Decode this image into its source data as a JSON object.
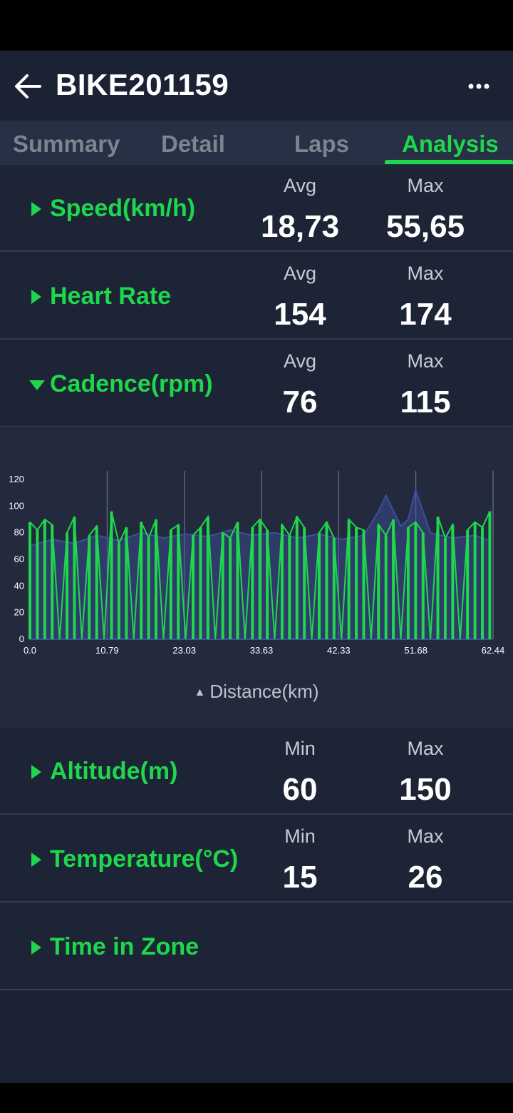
{
  "header": {
    "title": "BIKE201159"
  },
  "tabs": [
    {
      "label": "Summary",
      "active": false
    },
    {
      "label": "Detail",
      "active": false
    },
    {
      "label": "Laps",
      "active": false
    },
    {
      "label": "Analysis",
      "active": true
    }
  ],
  "metrics": [
    {
      "label": "Speed(km/h)",
      "h1": "Avg",
      "v1": "18,73",
      "h2": "Max",
      "v2": "55,65",
      "expanded": false
    },
    {
      "label": "Heart Rate",
      "h1": "Avg",
      "v1": "154",
      "h2": "Max",
      "v2": "174",
      "expanded": false
    },
    {
      "label": "Cadence(rpm)",
      "h1": "Avg",
      "v1": "76",
      "h2": "Max",
      "v2": "115",
      "expanded": true
    },
    {
      "label": "Altitude(m)",
      "h1": "Min",
      "v1": "60",
      "h2": "Max",
      "v2": "150",
      "expanded": false
    },
    {
      "label": "Temperature(°C)",
      "h1": "Min",
      "v1": "15",
      "h2": "Max",
      "v2": "26",
      "expanded": false
    },
    {
      "label": "Time in Zone",
      "h1": "",
      "v1": "",
      "h2": "",
      "v2": "",
      "expanded": false
    }
  ],
  "colors": {
    "accent": "#1ed74c",
    "series_secondary": "#3d4fa0",
    "background": "#1b2233"
  },
  "icons": {
    "back": "arrow-left-icon",
    "more": "more-horizontal-icon",
    "sort": "sort-updown-icon",
    "expand": "triangle-right-icon",
    "collapse": "triangle-down-icon"
  },
  "chart_data": {
    "type": "area",
    "xlabel": "Distance(km)",
    "x_ticks": [
      "0.0",
      "10.79",
      "23.03",
      "33.63",
      "42.33",
      "51.68",
      "62.44"
    ],
    "y_ticks": [
      0,
      20,
      40,
      60,
      80,
      100,
      120
    ],
    "xlim": [
      0,
      62.44
    ],
    "ylim": [
      0,
      120
    ],
    "grid": true,
    "series": [
      {
        "color": "#1ed74c",
        "x": [
          0,
          1,
          2,
          3,
          4,
          5,
          6,
          7,
          8,
          9,
          10,
          11,
          12,
          13,
          14,
          15,
          16,
          17,
          18,
          19,
          20,
          21,
          22,
          23,
          24,
          25,
          26,
          27,
          28,
          29,
          30,
          31,
          32,
          33,
          34,
          35,
          36,
          37,
          38,
          39,
          40,
          41,
          42,
          43,
          44,
          45,
          46,
          47,
          48,
          49,
          50,
          51,
          52,
          53,
          54,
          55,
          56,
          57,
          58,
          59,
          60,
          61,
          62
        ],
        "y": [
          88,
          82,
          90,
          86,
          0,
          80,
          92,
          0,
          78,
          85,
          0,
          96,
          72,
          84,
          0,
          88,
          76,
          90,
          0,
          82,
          86,
          0,
          78,
          84,
          92,
          0,
          80,
          76,
          88,
          0,
          84,
          90,
          82,
          0,
          86,
          78,
          92,
          84,
          0,
          80,
          88,
          76,
          0,
          90,
          84,
          82,
          0,
          86,
          78,
          90,
          0,
          84,
          88,
          80,
          0,
          92,
          76,
          86,
          0,
          82,
          88,
          84,
          96
        ]
      },
      {
        "color": "#3d4fa0",
        "x": [
          0,
          3,
          6,
          9,
          12,
          15,
          18,
          21,
          24,
          27,
          30,
          33,
          36,
          39,
          42,
          45,
          47,
          48,
          50,
          51,
          52,
          54,
          57,
          60,
          62
        ],
        "y": [
          70,
          75,
          72,
          78,
          74,
          80,
          76,
          79,
          77,
          82,
          78,
          80,
          76,
          79,
          75,
          78,
          96,
          108,
          85,
          90,
          112,
          80,
          76,
          78,
          74
        ]
      }
    ]
  }
}
